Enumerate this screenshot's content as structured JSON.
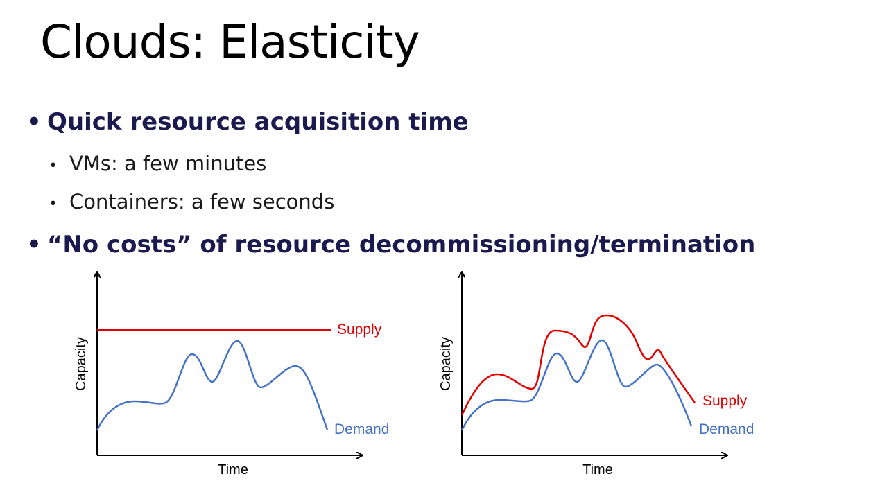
{
  "slide": {
    "title": "Clouds: Elasticity",
    "bullets": [
      {
        "text": "Quick resource acquisition time",
        "sub": [
          "VMs: a few minutes",
          "Containers: a few seconds"
        ]
      },
      {
        "text": "“No costs” of resource decommissioning/termination",
        "sub": []
      }
    ],
    "bullet_glyph": "•"
  },
  "colors": {
    "supply": "#e00000",
    "demand": "#4472c4",
    "title": "#000000",
    "bullet": "#1a1a4e"
  },
  "chart_data": [
    {
      "type": "line",
      "xlabel": "Time",
      "ylabel": "Capacity",
      "grid": false,
      "series": [
        {
          "name": "Supply",
          "shape": "constant"
        },
        {
          "name": "Demand",
          "shape": "varying"
        }
      ]
    },
    {
      "type": "line",
      "xlabel": "Time",
      "ylabel": "Capacity",
      "grid": false,
      "series": [
        {
          "name": "Supply",
          "shape": "tracks demand"
        },
        {
          "name": "Demand",
          "shape": "varying"
        }
      ]
    }
  ]
}
